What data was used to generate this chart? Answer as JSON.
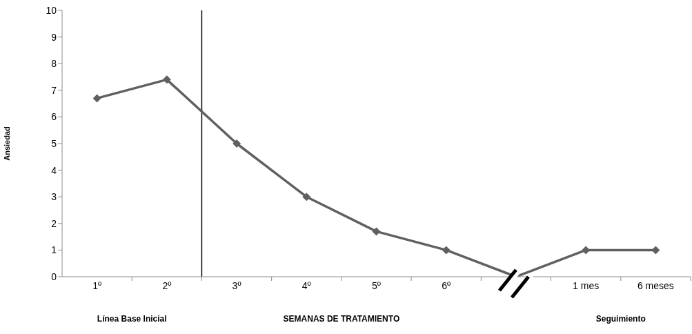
{
  "chart_data": {
    "type": "line",
    "ylabel": "Ansiedad",
    "categories": [
      "1º",
      "2º",
      "3º",
      "4º",
      "5º",
      "6º",
      null,
      "1 mes",
      "6 meses"
    ],
    "series": [
      {
        "color": "#606060",
        "values": [
          6.7,
          7.4,
          5,
          3,
          1.7,
          1,
          0,
          1,
          1
        ]
      }
    ],
    "ylim": [
      0,
      10
    ],
    "yticks": [
      0,
      1,
      2,
      3,
      4,
      5,
      6,
      7,
      8,
      9,
      10
    ],
    "grid": false,
    "legend": false,
    "marker": "diamond",
    "line_style": "solid",
    "annotations": [
      "Línea Base Inicial",
      "SEMANAS DE TRATAMIENTO",
      "Seguimiento"
    ]
  }
}
